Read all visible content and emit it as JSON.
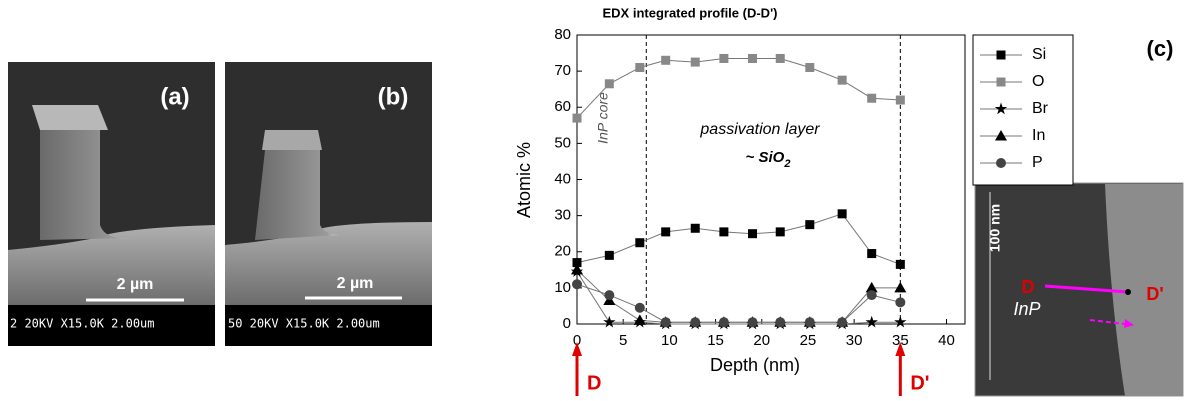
{
  "chart_data": {
    "type": "line",
    "title": "EDX integrated profile (D-D')",
    "xlabel": "Depth (nm)",
    "ylabel": "Atomic %",
    "x": [
      0,
      3.5,
      6.8,
      9.6,
      12.8,
      15.9,
      19,
      22,
      25.2,
      28.7,
      31.9,
      35
    ],
    "series": [
      {
        "name": "Si",
        "color": "#000000",
        "marker": "square",
        "values": [
          17,
          19,
          22.5,
          25.5,
          26.5,
          25.5,
          25,
          25.5,
          27.5,
          30.5,
          19.5,
          16.5
        ]
      },
      {
        "name": "O",
        "color": "#888888",
        "marker": "square",
        "values": [
          57,
          66.5,
          71,
          73,
          72.5,
          73.5,
          73.5,
          73.5,
          71,
          67.5,
          62.5,
          62
        ]
      },
      {
        "name": "Br",
        "color": "#000000",
        "marker": "star",
        "values": [
          14.5,
          0.5,
          0.5,
          0,
          0,
          0,
          0,
          0,
          0,
          0,
          0.5,
          0.5
        ]
      },
      {
        "name": "In",
        "color": "#000000",
        "marker": "triangle",
        "values": [
          15,
          6.5,
          1,
          0.5,
          0.5,
          0.5,
          0.5,
          0.5,
          0.5,
          0.5,
          10,
          10
        ]
      },
      {
        "name": "P",
        "color": "#444444",
        "marker": "circle",
        "values": [
          11,
          8,
          4.5,
          0.5,
          0.5,
          0.5,
          0.5,
          0.5,
          0.5,
          0.5,
          8,
          6
        ]
      }
    ],
    "xlim": [
      0,
      42
    ],
    "xticks": [
      0,
      5,
      10,
      15,
      20,
      25,
      30,
      35,
      40
    ],
    "ylim": [
      0,
      80
    ],
    "yticks": [
      0,
      10,
      20,
      30,
      40,
      50,
      60,
      70,
      80
    ],
    "vlines": [
      7.5,
      35
    ],
    "annotations": {
      "core": "InP core",
      "layer": "passivation layer",
      "formula": "~ SiO",
      "formula_sub": "2",
      "start": "D",
      "end": "D'"
    }
  },
  "panels": {
    "a": {
      "label": "(a)",
      "scale": "2 µm",
      "info": "2 20KV X15.0K 2.00um"
    },
    "b": {
      "label": "(b)",
      "scale": "2 µm",
      "info": "50 20KV X15.0K 2.00um"
    },
    "c": {
      "label": "(c)",
      "scale": "100 nm",
      "material": "InP",
      "start": "D",
      "end": "D'"
    }
  }
}
